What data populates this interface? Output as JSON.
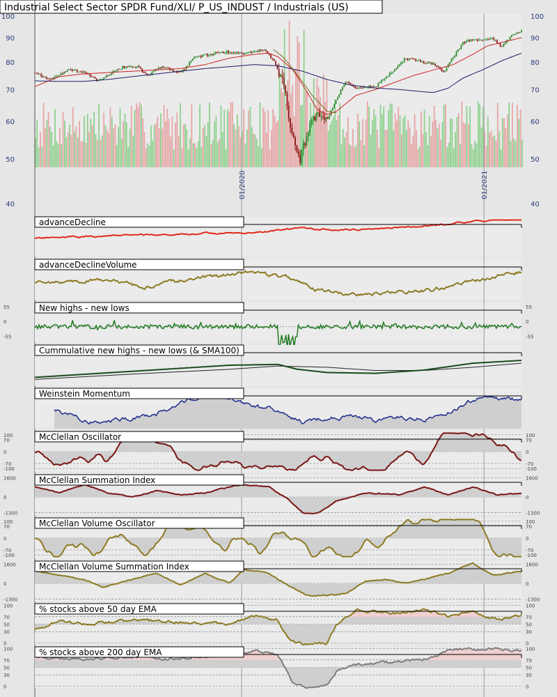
{
  "title": "Industrial Select Sector SPDR Fund/XLI/ P_US_INDUST / Industrials (US)",
  "colors": {
    "background": "#e6e6e6",
    "panel": "#ebebeb",
    "price_up": "#2e8b2e",
    "price_down": "#8b1a1a",
    "sma_short": "#cc2222",
    "sma_long": "#1a1a66",
    "sma_olive": "#7a6a1a",
    "vol_up": "#8fd08f",
    "vol_down": "#e6a6a6",
    "red_line": "#e02a1a",
    "olive": "#8c7a22",
    "green": "#1f7a1f",
    "navy": "#1c2a8c",
    "maroon": "#7a1414",
    "gray": "#7d7d7d",
    "fill_gray": "#cfcfcf",
    "fill_pink": "#efd0d0",
    "axis_text": "#2a3a7a"
  },
  "chart_data": [
    {
      "id": "price",
      "type": "candlestick",
      "title": "Industrial Select Sector SPDR Fund/XLI/ P_US_INDUST / Industrials (US)",
      "yscale": "log",
      "ylim": [
        48,
        101
      ],
      "y_ticks": [
        100,
        90,
        80,
        70,
        60,
        50,
        40
      ],
      "x_ticks": [
        {
          "label": "01/2020",
          "pos": 0.425
        },
        {
          "label": "01/2021",
          "pos": 0.923
        }
      ],
      "series": [
        {
          "kind": "close",
          "keypoints": [
            [
              0,
              76
            ],
            [
              0.03,
              73.5
            ],
            [
              0.07,
              77
            ],
            [
              0.1,
              76.5
            ],
            [
              0.13,
              73
            ],
            [
              0.18,
              78
            ],
            [
              0.21,
              78.5
            ],
            [
              0.23,
              75
            ],
            [
              0.26,
              78
            ],
            [
              0.3,
              76
            ],
            [
              0.33,
              82
            ],
            [
              0.36,
              83
            ],
            [
              0.39,
              84
            ],
            [
              0.43,
              83.5
            ],
            [
              0.45,
              84
            ],
            [
              0.47,
              85
            ],
            [
              0.49,
              81
            ],
            [
              0.51,
              72
            ],
            [
              0.53,
              55
            ],
            [
              0.545,
              50
            ],
            [
              0.56,
              57
            ],
            [
              0.58,
              63
            ],
            [
              0.6,
              60
            ],
            [
              0.62,
              67
            ],
            [
              0.64,
              73
            ],
            [
              0.66,
              70
            ],
            [
              0.68,
              71
            ],
            [
              0.7,
              71
            ],
            [
              0.72,
              74
            ],
            [
              0.74,
              77
            ],
            [
              0.76,
              81
            ],
            [
              0.78,
              81
            ],
            [
              0.8,
              80
            ],
            [
              0.82,
              79
            ],
            [
              0.84,
              76
            ],
            [
              0.86,
              82
            ],
            [
              0.88,
              88
            ],
            [
              0.9,
              89
            ],
            [
              0.92,
              89
            ],
            [
              0.94,
              90
            ],
            [
              0.96,
              86
            ],
            [
              0.98,
              91
            ],
            [
              1,
              93
            ]
          ]
        },
        {
          "kind": "sma_short",
          "keypoints": [
            [
              0,
              71
            ],
            [
              0.05,
              74.5
            ],
            [
              0.1,
              75.5
            ],
            [
              0.15,
              76
            ],
            [
              0.2,
              76.5
            ],
            [
              0.25,
              77
            ],
            [
              0.3,
              77.5
            ],
            [
              0.35,
              79
            ],
            [
              0.4,
              81.5
            ],
            [
              0.45,
              83
            ],
            [
              0.48,
              83.5
            ],
            [
              0.5,
              82
            ],
            [
              0.53,
              77
            ],
            [
              0.56,
              69
            ],
            [
              0.58,
              63.5
            ],
            [
              0.6,
              62
            ],
            [
              0.62,
              63
            ],
            [
              0.64,
              65.5
            ],
            [
              0.66,
              68
            ],
            [
              0.7,
              70
            ],
            [
              0.74,
              72.5
            ],
            [
              0.78,
              75
            ],
            [
              0.82,
              77
            ],
            [
              0.86,
              79
            ],
            [
              0.9,
              83
            ],
            [
              0.93,
              86.5
            ],
            [
              0.96,
              88
            ],
            [
              1,
              90
            ]
          ]
        },
        {
          "kind": "sma_long",
          "keypoints": [
            [
              0,
              73
            ],
            [
              0.05,
              72.8
            ],
            [
              0.1,
              72.8
            ],
            [
              0.15,
              73.5
            ],
            [
              0.2,
              74.5
            ],
            [
              0.25,
              75.5
            ],
            [
              0.3,
              76.5
            ],
            [
              0.35,
              77.5
            ],
            [
              0.4,
              78.2
            ],
            [
              0.45,
              79
            ],
            [
              0.5,
              78.5
            ],
            [
              0.55,
              76.5
            ],
            [
              0.6,
              73.5
            ],
            [
              0.65,
              71.5
            ],
            [
              0.7,
              70.5
            ],
            [
              0.75,
              70
            ],
            [
              0.8,
              69.2
            ],
            [
              0.82,
              69
            ],
            [
              0.85,
              70.5
            ],
            [
              0.88,
              74
            ],
            [
              0.92,
              77
            ],
            [
              0.96,
              80.5
            ],
            [
              1,
              83.5
            ]
          ]
        },
        {
          "kind": "sma_olive",
          "keypoints": [
            [
              0.49,
              85
            ],
            [
              0.51,
              82
            ],
            [
              0.54,
              75
            ],
            [
              0.57,
              68
            ],
            [
              0.6,
              63
            ],
            [
              0.62,
              62.5
            ]
          ]
        }
      ]
    },
    {
      "id": "advanceDecline",
      "type": "line",
      "title": "advanceDecline"
    },
    {
      "id": "advanceDeclineVolume",
      "type": "line",
      "title": "advanceDeclineVolume"
    },
    {
      "id": "new_highs_new_lows",
      "type": "line",
      "title": "New highs - new lows",
      "y_ticks": [
        55,
        0,
        -55
      ],
      "ylim": [
        -80,
        70
      ]
    },
    {
      "id": "cumulative_new_highs_new_lows",
      "type": "line",
      "title": "Cummulative new highs - new lows (& SMA100)"
    },
    {
      "id": "weinstein_momentum",
      "type": "area",
      "title": "Weinstein Momentum"
    },
    {
      "id": "mcclellan_oscillator",
      "type": "area",
      "title": "McClellan Oscillator",
      "y_ticks": [
        100,
        70,
        0,
        -70,
        -100
      ],
      "ylim": [
        -120,
        120
      ]
    },
    {
      "id": "mcclellan_summation_index",
      "type": "area",
      "title": "McClellan Summation Index",
      "y_ticks": [
        1600,
        0,
        -1300
      ],
      "ylim": [
        -1500,
        1850
      ]
    },
    {
      "id": "mcclellan_volume_oscillator",
      "type": "area",
      "title": "McClellan Volume Oscillator",
      "y_ticks": [
        100,
        70,
        0,
        -70,
        -100
      ],
      "ylim": [
        -120,
        120
      ]
    },
    {
      "id": "mcclellan_volume_summation_index",
      "type": "area",
      "title": "McClellan Volume Summation Index",
      "y_ticks": [
        1600,
        0,
        -1300
      ],
      "ylim": [
        -1500,
        1850
      ]
    },
    {
      "id": "pct_above_50ema",
      "type": "area",
      "title": "% stocks above 50 day EMA",
      "y_ticks": [
        100,
        70,
        50,
        30,
        0
      ],
      "ylim": [
        -5,
        105
      ]
    },
    {
      "id": "pct_above_200ema",
      "type": "area",
      "title": "% stocks above 200 day EMA",
      "y_ticks": [
        100,
        70,
        50,
        30,
        0
      ],
      "ylim": [
        -5,
        105
      ]
    }
  ]
}
